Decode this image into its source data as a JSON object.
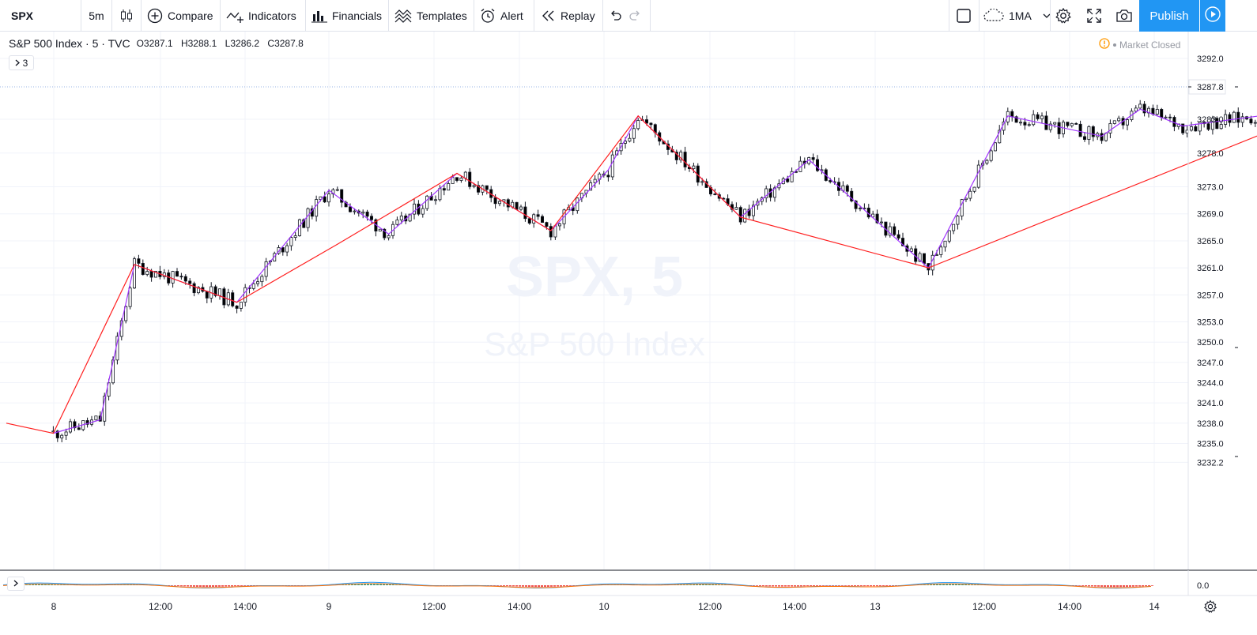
{
  "toolbar": {
    "symbol": "SPX",
    "interval": "5m",
    "compare": "Compare",
    "indicators": "Indicators",
    "financials": "Financials",
    "templates": "Templates",
    "alert": "Alert",
    "replay": "Replay",
    "ma_label": "1MA",
    "publish": "Publish"
  },
  "legend": {
    "title": "S&P 500 Index · 5 · TVC",
    "open": "O3287.1",
    "high": "H3288.1",
    "low": "L3286.2",
    "close": "C3287.8",
    "collapsed_count": "3"
  },
  "status": {
    "market": "Market Closed"
  },
  "watermark": {
    "symbol": "SPX, 5",
    "name": "S&P 500 Index"
  },
  "colors": {
    "up_candle": "#ffffff",
    "down_candle": "#000000",
    "red_zigzag": "#ff1f1f",
    "purple_zigzag": "#a033ff",
    "accent": "#2196f3"
  },
  "chart_data": {
    "type": "candlestick",
    "price_axis_ticks": [
      "3292.0",
      "3287.8",
      "3283.0",
      "3278.0",
      "3273.0",
      "3269.0",
      "3265.0",
      "3261.0",
      "3257.0",
      "3253.0",
      "3250.0",
      "3247.0",
      "3244.0",
      "3241.0",
      "3238.0",
      "3235.0",
      "3232.2"
    ],
    "last_price": "3287.8",
    "indicator_axis_tick": "0.0",
    "time_axis_ticks": [
      "8",
      "12:00",
      "14:00",
      "9",
      "12:00",
      "14:00",
      "10",
      "12:00",
      "14:00",
      "13",
      "12:00",
      "14:00",
      "14"
    ],
    "red_zigzag": [
      {
        "time": "8 09:30",
        "price": 3238.0
      },
      {
        "time": "8 10:25",
        "price": 3236.5
      },
      {
        "time": "8 12:00",
        "price": 3261.5
      },
      {
        "time": "8 14:00",
        "price": 3255.9
      },
      {
        "time": "9 09:40",
        "price": 3264.5
      },
      {
        "time": "9 12:00",
        "price": 3275.0
      },
      {
        "time": "9 13:50",
        "price": 3266.5
      },
      {
        "time": "10 10:10",
        "price": 3283.5
      },
      {
        "time": "10 12:10",
        "price": 3268.5
      },
      {
        "time": "10 15:50",
        "price": 3261.0
      },
      {
        "time": "14 14:05",
        "price": 3288.5
      }
    ],
    "purple_zigzag": [
      {
        "time": "8 10:25",
        "price": 3236.5
      },
      {
        "time": "8 11:20",
        "price": 3238.5
      },
      {
        "time": "8 12:00",
        "price": 3261.5
      },
      {
        "time": "8 14:00",
        "price": 3255.9
      },
      {
        "time": "9 09:30",
        "price": 3272.5
      },
      {
        "time": "9 10:40",
        "price": 3266.0
      },
      {
        "time": "9 12:00",
        "price": 3275.0
      },
      {
        "time": "9 13:50",
        "price": 3266.5
      },
      {
        "time": "10 09:35",
        "price": 3275.5
      },
      {
        "time": "10 10:10",
        "price": 3283.5
      },
      {
        "time": "10 12:10",
        "price": 3268.5
      },
      {
        "time": "10 13:30",
        "price": 3277.0
      },
      {
        "time": "10 15:50",
        "price": 3261.0
      },
      {
        "time": "13 12:10",
        "price": 3283.5
      },
      {
        "time": "13 14:00",
        "price": 3280.5
      },
      {
        "time": "13 14:45",
        "price": 3284.5
      },
      {
        "time": "13 15:35",
        "price": 3282.0
      },
      {
        "time": "14 16:00",
        "price": 3288.0
      }
    ]
  }
}
